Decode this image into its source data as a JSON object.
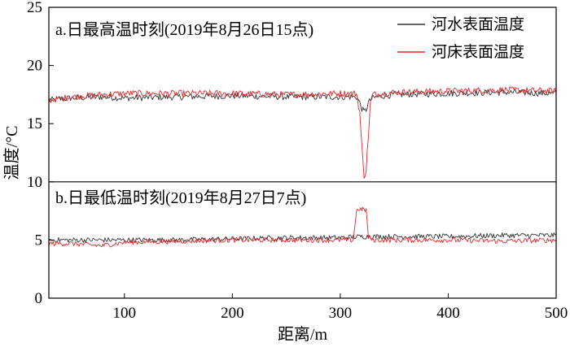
{
  "chart_data": {
    "type": "line",
    "ylabel": "温度/°C",
    "xlabel": "距离/m",
    "x_ticks": [
      100,
      200,
      300,
      400,
      500
    ],
    "x_tick_labels": [
      "100",
      "200",
      "300",
      "400",
      "500"
    ],
    "y_ticks": [
      0,
      5,
      10,
      15,
      20,
      25
    ],
    "y_tick_labels": [
      "0",
      "5",
      "10",
      "15",
      "20",
      "25"
    ],
    "xlim": [
      30,
      500
    ],
    "ylim": [
      0,
      25
    ],
    "legend": {
      "placement": "top-right",
      "entries": [
        {
          "label": "河水表面温度",
          "color": "#333333"
        },
        {
          "label": "河床表面温度",
          "color": "#e8262a"
        }
      ]
    },
    "panels": [
      {
        "title": "a.日最高温时刻(2019年8月26日15点)",
        "ylim": [
          10,
          25
        ],
        "series": [
          {
            "name": "河水表面温度",
            "color": "#333333",
            "x": [
              30,
              50,
              80,
              100,
              150,
              200,
              250,
              300,
              315,
              318,
              320,
              322,
              324,
              326,
              330,
              340,
              350,
              400,
              450,
              500
            ],
            "y": [
              17.0,
              17.2,
              17.3,
              17.2,
              17.3,
              17.4,
              17.3,
              17.3,
              17.3,
              16.8,
              16.3,
              16.0,
              16.2,
              16.8,
              17.2,
              17.4,
              17.5,
              17.6,
              17.7,
              17.6
            ]
          },
          {
            "name": "河床表面温度",
            "color": "#e8262a",
            "x": [
              30,
              50,
              80,
              100,
              150,
              200,
              250,
              300,
              315,
              318,
              320,
              322,
              324,
              326,
              328,
              330,
              340,
              350,
              400,
              450,
              500
            ],
            "y": [
              17.0,
              17.3,
              17.5,
              17.6,
              17.6,
              17.6,
              17.5,
              17.6,
              17.6,
              16.0,
              13.0,
              10.5,
              11.0,
              14.0,
              16.8,
              17.5,
              17.6,
              17.7,
              17.8,
              17.9,
              17.8
            ]
          }
        ]
      },
      {
        "title": "b.日最低温时刻(2019年8月27日7点)",
        "ylim": [
          0,
          10
        ],
        "series": [
          {
            "name": "河水表面温度",
            "color": "#333333",
            "x": [
              30,
              50,
              80,
              100,
              150,
              200,
              250,
              300,
              320,
              330,
              350,
              400,
              450,
              500
            ],
            "y": [
              5.0,
              5.0,
              5.0,
              5.0,
              5.0,
              5.1,
              5.2,
              5.2,
              5.3,
              5.3,
              5.3,
              5.3,
              5.4,
              5.4
            ]
          },
          {
            "name": "河床表面温度",
            "color": "#e8262a",
            "x": [
              30,
              50,
              80,
              85,
              100,
              150,
              200,
              250,
              300,
              312,
              315,
              318,
              320,
              324,
              326,
              330,
              350,
              400,
              450,
              500
            ],
            "y": [
              4.7,
              4.7,
              4.5,
              4.6,
              4.8,
              4.9,
              5.0,
              5.0,
              5.0,
              5.0,
              7.5,
              7.7,
              7.6,
              7.6,
              5.3,
              5.0,
              5.0,
              5.0,
              4.9,
              5.0
            ]
          }
        ]
      }
    ]
  }
}
